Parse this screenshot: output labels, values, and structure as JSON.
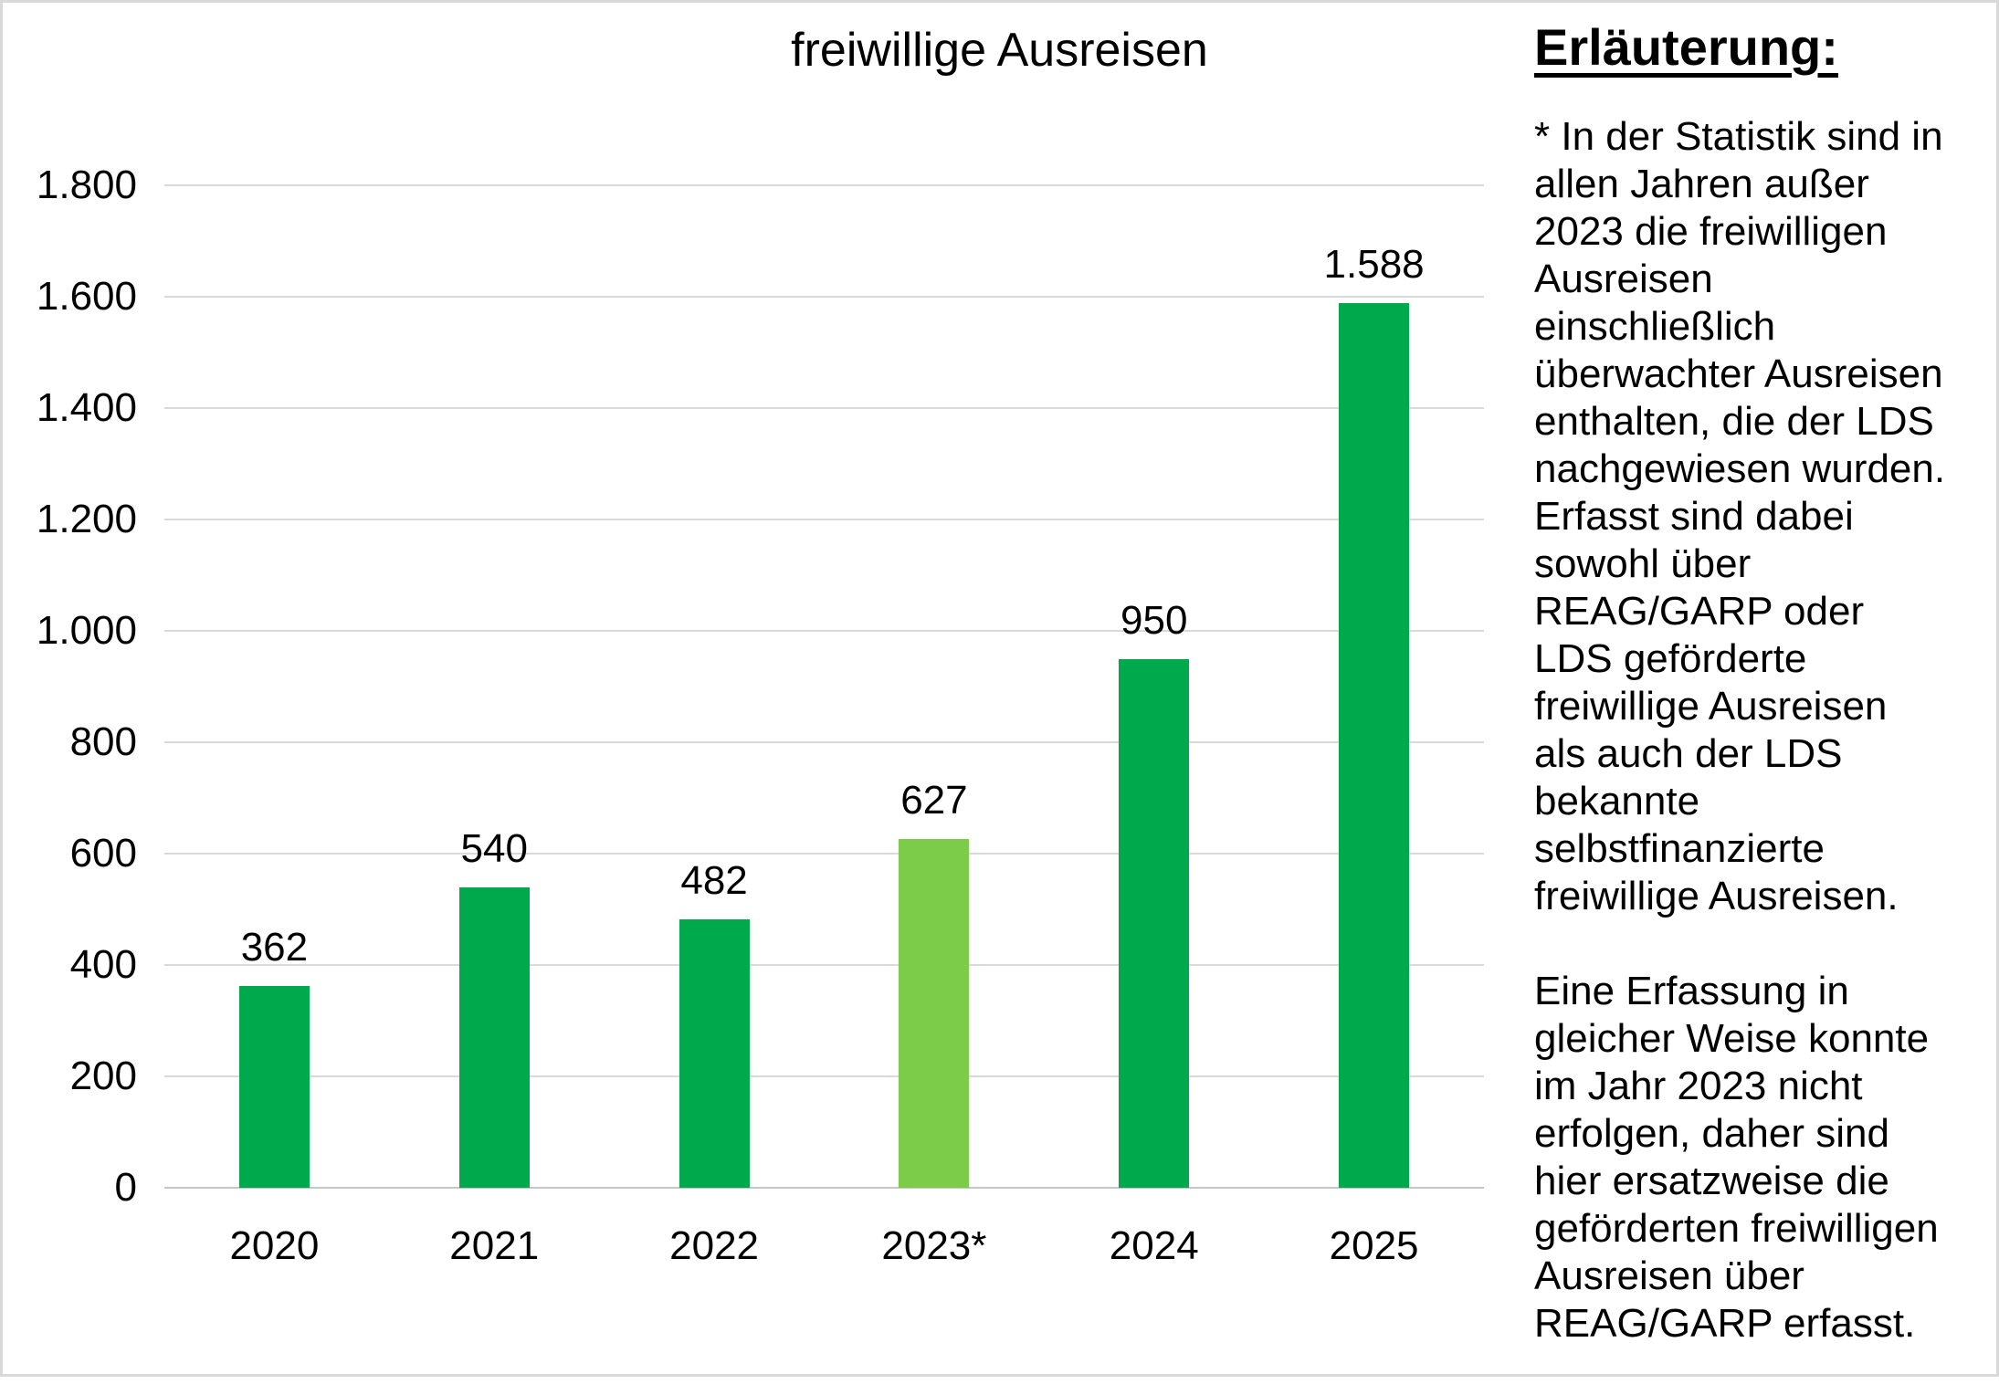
{
  "chart_data": {
    "type": "bar",
    "title": "freiwillige Ausreisen",
    "categories": [
      "2020",
      "2021",
      "2022",
      "2023*",
      "2024",
      "2025"
    ],
    "values": [
      362,
      540,
      482,
      627,
      950,
      1588
    ],
    "value_labels": [
      "362",
      "540",
      "482",
      "627",
      "950",
      "1.588"
    ],
    "bar_colors": [
      "#00a94c",
      "#00a94c",
      "#00a94c",
      "#7dcc49",
      "#00a94c",
      "#00a94c"
    ],
    "xlabel": "",
    "ylabel": "",
    "ylim": [
      0,
      1800
    ],
    "ytick_step": 200,
    "ytick_labels": [
      "0",
      "200",
      "400",
      "600",
      "800",
      "1.000",
      "1.200",
      "1.400",
      "1.600",
      "1.800"
    ],
    "grid": true,
    "legend": "none",
    "theme": {
      "gridline_color": "#d9d9d9",
      "baseline_color": "#c6c6c6",
      "frame_color": "#d9d9d9",
      "text_color": "#000000"
    }
  },
  "sidebar": {
    "heading": "Erläuterung:",
    "paragraphs": [
      [
        "* In der Statistik sind in",
        "allen Jahren außer",
        "2023 die freiwilligen",
        "Ausreisen",
        "einschließlich",
        "überwachter Ausreisen",
        "enthalten, die der LDS",
        "nachgewiesen wurden.",
        "Erfasst sind dabei",
        "sowohl über",
        "REAG/GARP oder",
        "LDS geförderte",
        "freiwillige Ausreisen",
        "als auch der LDS",
        "bekannte",
        "selbstfinanzierte",
        "freiwillige Ausreisen."
      ],
      [
        "Eine Erfassung in",
        "gleicher Weise konnte",
        "im Jahr 2023 nicht",
        "erfolgen, daher sind",
        "hier ersatzweise die",
        "geförderten freiwilligen",
        "Ausreisen über",
        "REAG/GARP erfasst."
      ]
    ]
  }
}
